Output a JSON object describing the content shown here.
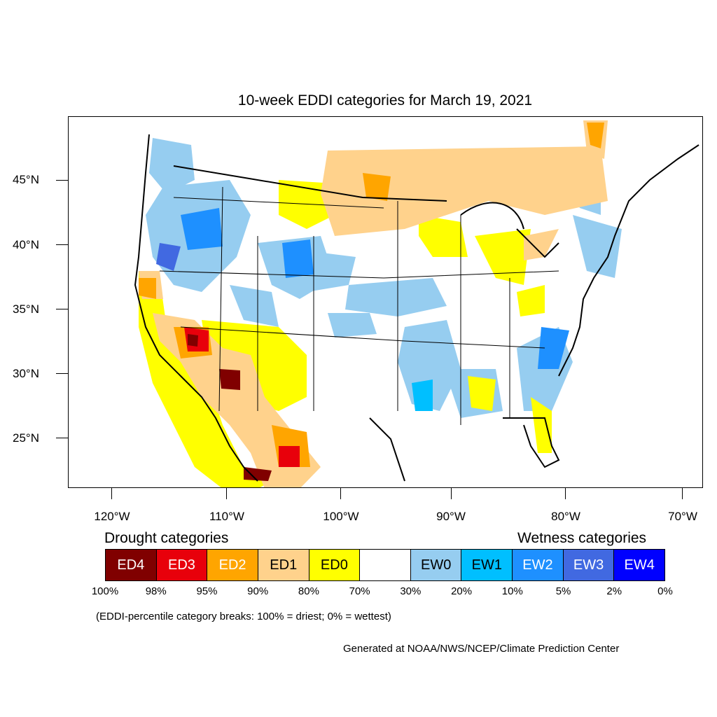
{
  "title": "10-week EDDI categories for March 19, 2021",
  "lat_labels": [
    "45°N",
    "40°N",
    "35°N",
    "30°N",
    "25°N"
  ],
  "lon_labels": [
    "120°W",
    "110°W",
    "100°W",
    "90°W",
    "80°W",
    "70°W"
  ],
  "legend": {
    "drought_title": "Drought categories",
    "wetness_title": "Wetness categories",
    "categories": [
      {
        "label": "ED4",
        "color": "#800000",
        "text_color": "#ffffff"
      },
      {
        "label": "ED3",
        "color": "#e8000b",
        "text_color": "#ffffff"
      },
      {
        "label": "ED2",
        "color": "#ffa500",
        "text_color": "#ffffff"
      },
      {
        "label": "ED1",
        "color": "#ffd28c",
        "text_color": "#000000"
      },
      {
        "label": "ED0",
        "color": "#ffff00",
        "text_color": "#000000"
      },
      {
        "label": "",
        "color": "#ffffff",
        "text_color": "#000000"
      },
      {
        "label": "EW0",
        "color": "#96cdf0",
        "text_color": "#000000"
      },
      {
        "label": "EW1",
        "color": "#00bfff",
        "text_color": "#000000"
      },
      {
        "label": "EW2",
        "color": "#1e90ff",
        "text_color": "#ffffff"
      },
      {
        "label": "EW3",
        "color": "#4169e1",
        "text_color": "#ffffff"
      },
      {
        "label": "EW4",
        "color": "#0000ff",
        "text_color": "#ffffff"
      }
    ],
    "percentiles": [
      "100%",
      "98%",
      "95%",
      "90%",
      "80%",
      "70%",
      "30%",
      "20%",
      "10%",
      "5%",
      "2%",
      "0%"
    ]
  },
  "note": "(EDDI-percentile category breaks: 100% = driest; 0% = wettest)",
  "credit": "Generated at NOAA/NWS/NCEP/Climate Prediction Center"
}
